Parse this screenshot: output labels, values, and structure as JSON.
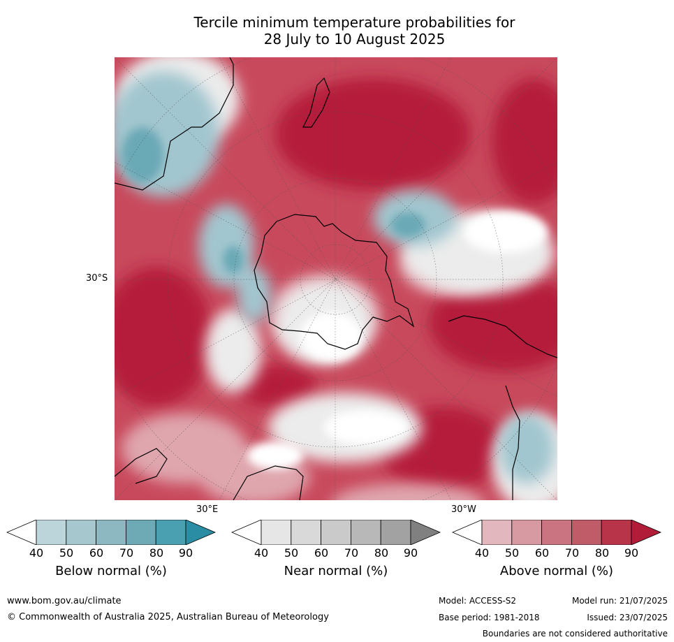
{
  "title_line1": "Tercile minimum temperature probabilities for",
  "title_line2": "28 July to 10 August 2025",
  "axis": {
    "lat_label": "30°S",
    "lon_label_e": "30°E",
    "lon_label_w": "30°W"
  },
  "colorbars": [
    {
      "label": "Below normal (%)",
      "ticks": [
        "40",
        "50",
        "60",
        "70",
        "80",
        "90"
      ],
      "colors": [
        "#ffffff",
        "#bcd5da",
        "#a6c7cd",
        "#8db8c2",
        "#6eaab6",
        "#4aa0b1",
        "#2b8da3"
      ]
    },
    {
      "label": "Near normal (%)",
      "ticks": [
        "40",
        "50",
        "60",
        "70",
        "80",
        "90"
      ],
      "colors": [
        "#ffffff",
        "#e6e6e6",
        "#d9d9d9",
        "#cacaca",
        "#b8b8b8",
        "#a2a2a2",
        "#808080"
      ]
    },
    {
      "label": "Above normal (%)",
      "ticks": [
        "40",
        "50",
        "60",
        "70",
        "80",
        "90"
      ],
      "colors": [
        "#ffffff",
        "#e2b8be",
        "#d79aa3",
        "#c97480",
        "#c05b68",
        "#b83448",
        "#b11c38"
      ]
    }
  ],
  "footer": {
    "website": "www.bom.gov.au/climate",
    "copyright": "© Commonwealth of Australia 2025, Australian Bureau of Meteorology",
    "model": "Model: ACCESS-S2",
    "base_period": "Base period: 1981-2018",
    "model_run": "Model run: 21/07/2025",
    "issued": "Issued: 23/07/2025",
    "boundaries_note": "Boundaries are not considered authoritative"
  }
}
